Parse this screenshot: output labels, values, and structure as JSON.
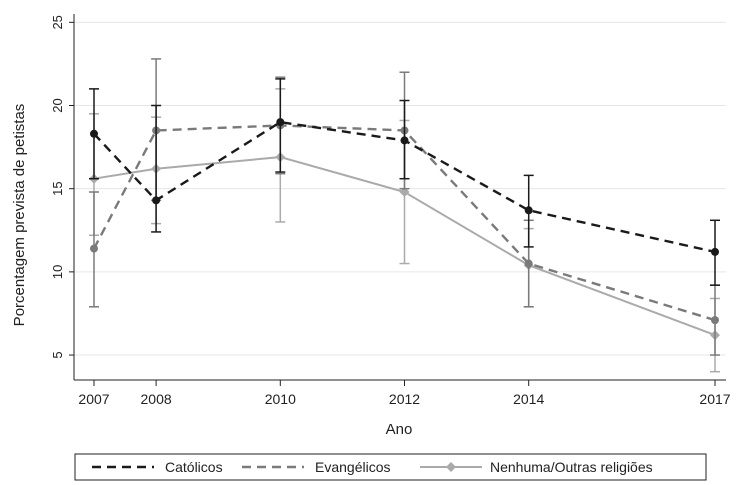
{
  "chart_data": {
    "type": "line",
    "title": "",
    "xlabel": "Ano",
    "ylabel": "Porcentagem prevista de petistas",
    "x": [
      2007,
      2008,
      2010,
      2012,
      2014,
      2017
    ],
    "x_ticks": [
      "2007",
      "2008",
      "2010",
      "2012",
      "2014",
      "2017"
    ],
    "y_ticks": [
      "5",
      "10",
      "15",
      "20",
      "25"
    ],
    "ylim": [
      3.5,
      25.5
    ],
    "xlim": [
      2007,
      2017
    ],
    "grid": "horizontal",
    "legend_position": "bottom",
    "series": [
      {
        "name": "Católicos",
        "style": "dashed",
        "marker": "circle",
        "color": "#1a1a1a",
        "values": [
          18.3,
          14.3,
          19.0,
          17.9,
          13.7,
          11.2
        ],
        "ci_low": [
          15.6,
          12.4,
          16.0,
          15.6,
          11.5,
          9.2
        ],
        "ci_high": [
          21.0,
          20.0,
          21.6,
          20.3,
          15.8,
          13.1
        ]
      },
      {
        "name": "Evangélicos",
        "style": "dashed",
        "marker": "circle",
        "color": "#7a7a7a",
        "values": [
          11.4,
          18.5,
          18.8,
          18.5,
          10.5,
          7.1
        ],
        "ci_low": [
          7.9,
          14.3,
          15.9,
          15.0,
          7.9,
          5.0
        ],
        "ci_high": [
          14.8,
          22.8,
          21.7,
          22.0,
          13.1,
          9.2
        ]
      },
      {
        "name": "Nenhuma/Outras religiões",
        "style": "solid",
        "marker": "diamond",
        "color": "#aaaaaa",
        "values": [
          15.6,
          16.2,
          16.9,
          14.8,
          10.4,
          6.2
        ],
        "ci_low": [
          12.2,
          12.9,
          13.0,
          10.5,
          7.9,
          4.0
        ],
        "ci_high": [
          19.5,
          19.3,
          21.0,
          19.1,
          12.6,
          8.4
        ]
      }
    ]
  }
}
